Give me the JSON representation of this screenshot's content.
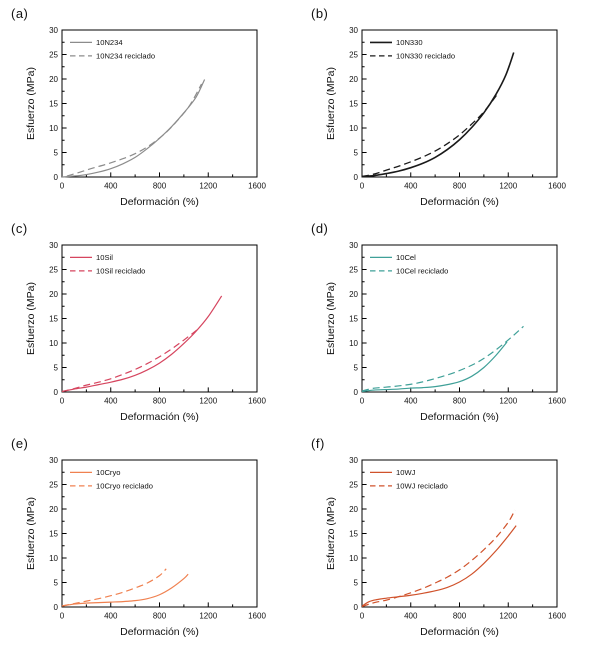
{
  "figure": {
    "xlabel": "Deformación (%)",
    "ylabel": "Esfuerzo (MPa)",
    "background": "#ffffff",
    "axis_color": "#000000"
  },
  "chart_data": [
    {
      "type": "line",
      "panel_label": "(a)",
      "xlabel": "Deformación (%)",
      "ylabel": "Esfuerzo (MPa)",
      "xlim": [
        0,
        1600
      ],
      "ylim": [
        0,
        30
      ],
      "xticks": [
        0,
        400,
        800,
        1200,
        1600
      ],
      "yticks": [
        0,
        5,
        10,
        15,
        20,
        25,
        30
      ],
      "x_minor_step": 200,
      "y_minor_step": 2.5,
      "grid": false,
      "legend_position": "top-left",
      "series": [
        {
          "name": "10N234",
          "style": "solid",
          "color": "#8c8c8c",
          "width": 1.2,
          "points": [
            [
              0,
              0
            ],
            [
              100,
              0.2
            ],
            [
              200,
              0.5
            ],
            [
              300,
              1.0
            ],
            [
              400,
              1.7
            ],
            [
              500,
              2.7
            ],
            [
              600,
              4.0
            ],
            [
              700,
              5.8
            ],
            [
              800,
              7.9
            ],
            [
              900,
              10.3
            ],
            [
              1000,
              13.1
            ],
            [
              1100,
              16.3
            ],
            [
              1170,
              19.9
            ]
          ]
        },
        {
          "name": "10N234 reciclado",
          "style": "dashed",
          "color": "#8c8c8c",
          "width": 1.2,
          "points": [
            [
              40,
              0.2
            ],
            [
              150,
              1.0
            ],
            [
              250,
              1.8
            ],
            [
              350,
              2.5
            ],
            [
              450,
              3.3
            ],
            [
              550,
              4.2
            ],
            [
              650,
              5.4
            ],
            [
              750,
              7.0
            ],
            [
              850,
              9.0
            ],
            [
              950,
              11.6
            ],
            [
              1050,
              14.7
            ],
            [
              1145,
              19.0
            ]
          ]
        }
      ]
    },
    {
      "type": "line",
      "panel_label": "(b)",
      "xlabel": "Deformación (%)",
      "ylabel": "Esfuerzo (MPa)",
      "xlim": [
        0,
        1600
      ],
      "ylim": [
        0,
        30
      ],
      "xticks": [
        0,
        400,
        800,
        1200,
        1600
      ],
      "yticks": [
        0,
        5,
        10,
        15,
        20,
        25,
        30
      ],
      "x_minor_step": 200,
      "y_minor_step": 2.5,
      "grid": false,
      "legend_position": "top-left",
      "series": [
        {
          "name": "10N330",
          "style": "solid",
          "color": "#1a1a1a",
          "width": 1.6,
          "points": [
            [
              0,
              0.1
            ],
            [
              100,
              0.3
            ],
            [
              200,
              0.7
            ],
            [
              300,
              1.2
            ],
            [
              400,
              1.9
            ],
            [
              500,
              2.8
            ],
            [
              600,
              4.0
            ],
            [
              700,
              5.6
            ],
            [
              800,
              7.6
            ],
            [
              900,
              10.1
            ],
            [
              1000,
              13.1
            ],
            [
              1100,
              16.9
            ],
            [
              1180,
              20.8
            ],
            [
              1245,
              25.4
            ]
          ]
        },
        {
          "name": "10N330 reciclado",
          "style": "dashed",
          "color": "#1a1a1a",
          "width": 1.3,
          "points": [
            [
              0,
              0.1
            ],
            [
              100,
              0.6
            ],
            [
              200,
              1.4
            ],
            [
              300,
              2.2
            ],
            [
              400,
              3.1
            ],
            [
              500,
              4.1
            ],
            [
              600,
              5.3
            ],
            [
              700,
              6.8
            ],
            [
              800,
              8.6
            ],
            [
              900,
              10.8
            ],
            [
              1000,
              13.3
            ],
            [
              1105,
              16.7
            ]
          ]
        }
      ]
    },
    {
      "type": "line",
      "panel_label": "(c)",
      "xlabel": "Deformación (%)",
      "ylabel": "Esfuerzo (MPa)",
      "xlim": [
        0,
        1600
      ],
      "ylim": [
        0,
        30
      ],
      "xticks": [
        0,
        400,
        800,
        1200,
        1600
      ],
      "yticks": [
        0,
        5,
        10,
        15,
        20,
        25,
        30
      ],
      "x_minor_step": 200,
      "y_minor_step": 2.5,
      "grid": false,
      "legend_position": "top-left",
      "series": [
        {
          "name": "10Sil",
          "style": "solid",
          "color": "#d6455f",
          "width": 1.2,
          "points": [
            [
              0,
              0.1
            ],
            [
              100,
              0.6
            ],
            [
              200,
              1.0
            ],
            [
              300,
              1.5
            ],
            [
              400,
              2.0
            ],
            [
              500,
              2.6
            ],
            [
              600,
              3.4
            ],
            [
              700,
              4.5
            ],
            [
              800,
              5.9
            ],
            [
              900,
              7.7
            ],
            [
              1000,
              9.9
            ],
            [
              1100,
              12.4
            ],
            [
              1200,
              15.4
            ],
            [
              1310,
              19.6
            ]
          ]
        },
        {
          "name": "10Sil reciclado",
          "style": "dashed",
          "color": "#d6455f",
          "width": 1.2,
          "points": [
            [
              0,
              0.1
            ],
            [
              100,
              0.7
            ],
            [
              200,
              1.4
            ],
            [
              300,
              2.0
            ],
            [
              400,
              2.7
            ],
            [
              500,
              3.6
            ],
            [
              600,
              4.6
            ],
            [
              700,
              5.8
            ],
            [
              800,
              7.2
            ],
            [
              900,
              8.8
            ],
            [
              1000,
              10.6
            ],
            [
              1115,
              12.8
            ]
          ]
        }
      ]
    },
    {
      "type": "line",
      "panel_label": "(d)",
      "xlabel": "Deformación (%)",
      "ylabel": "Esfuerzo (MPa)",
      "xlim": [
        0,
        1600
      ],
      "ylim": [
        0,
        30
      ],
      "xticks": [
        0,
        400,
        800,
        1200,
        1600
      ],
      "yticks": [
        0,
        5,
        10,
        15,
        20,
        25,
        30
      ],
      "x_minor_step": 200,
      "y_minor_step": 2.5,
      "grid": false,
      "legend_position": "top-left",
      "series": [
        {
          "name": "10Cel",
          "style": "solid",
          "color": "#3fa098",
          "width": 1.2,
          "points": [
            [
              0,
              0.1
            ],
            [
              100,
              0.4
            ],
            [
              200,
              0.5
            ],
            [
              300,
              0.6
            ],
            [
              400,
              0.8
            ],
            [
              500,
              0.9
            ],
            [
              600,
              1.1
            ],
            [
              700,
              1.5
            ],
            [
              800,
              2.1
            ],
            [
              900,
              3.2
            ],
            [
              1000,
              5.0
            ],
            [
              1100,
              7.5
            ],
            [
              1190,
              10.2
            ]
          ]
        },
        {
          "name": "10Cel reciclado",
          "style": "dashed",
          "color": "#3fa098",
          "width": 1.2,
          "points": [
            [
              0,
              0.2
            ],
            [
              80,
              0.7
            ],
            [
              150,
              0.9
            ],
            [
              250,
              1.1
            ],
            [
              350,
              1.4
            ],
            [
              450,
              1.8
            ],
            [
              550,
              2.4
            ],
            [
              650,
              3.1
            ],
            [
              750,
              3.9
            ],
            [
              850,
              4.9
            ],
            [
              950,
              6.1
            ],
            [
              1050,
              7.7
            ],
            [
              1150,
              9.6
            ],
            [
              1250,
              11.7
            ],
            [
              1325,
              13.4
            ]
          ]
        }
      ]
    },
    {
      "type": "line",
      "panel_label": "(e)",
      "xlabel": "Deformación (%)",
      "ylabel": "Esfuerzo (MPa)",
      "xlim": [
        0,
        1600
      ],
      "ylim": [
        0,
        30
      ],
      "xticks": [
        0,
        400,
        800,
        1200,
        1600
      ],
      "yticks": [
        0,
        5,
        10,
        15,
        20,
        25,
        30
      ],
      "x_minor_step": 200,
      "y_minor_step": 2.5,
      "grid": false,
      "legend_position": "top-left",
      "series": [
        {
          "name": "10Cryo",
          "style": "solid",
          "color": "#f08150",
          "width": 1.2,
          "points": [
            [
              0,
              0.2
            ],
            [
              100,
              0.6
            ],
            [
              200,
              0.8
            ],
            [
              300,
              0.9
            ],
            [
              400,
              1.0
            ],
            [
              500,
              1.1
            ],
            [
              600,
              1.3
            ],
            [
              700,
              1.7
            ],
            [
              800,
              2.5
            ],
            [
              900,
              3.9
            ],
            [
              1000,
              5.8
            ],
            [
              1035,
              6.7
            ]
          ]
        },
        {
          "name": "10Cryo reciclado",
          "style": "dashed",
          "color": "#f08150",
          "width": 1.2,
          "points": [
            [
              0,
              0.2
            ],
            [
              100,
              0.7
            ],
            [
              200,
              1.2
            ],
            [
              300,
              1.7
            ],
            [
              400,
              2.3
            ],
            [
              500,
              3.0
            ],
            [
              600,
              3.9
            ],
            [
              700,
              4.9
            ],
            [
              800,
              6.4
            ],
            [
              855,
              7.8
            ]
          ]
        }
      ]
    },
    {
      "type": "line",
      "panel_label": "(f)",
      "xlabel": "Deformación (%)",
      "ylabel": "Esfuerzo (MPa)",
      "xlim": [
        0,
        1600
      ],
      "ylim": [
        0,
        30
      ],
      "xticks": [
        0,
        400,
        800,
        1200,
        1600
      ],
      "yticks": [
        0,
        5,
        10,
        15,
        20,
        25,
        30
      ],
      "x_minor_step": 200,
      "y_minor_step": 2.5,
      "grid": false,
      "legend_position": "top-left",
      "series": [
        {
          "name": "10WJ",
          "style": "solid",
          "color": "#d0522b",
          "width": 1.2,
          "points": [
            [
              0,
              0.2
            ],
            [
              60,
              1.1
            ],
            [
              120,
              1.5
            ],
            [
              200,
              1.8
            ],
            [
              300,
              2.1
            ],
            [
              400,
              2.4
            ],
            [
              500,
              2.8
            ],
            [
              600,
              3.3
            ],
            [
              700,
              4.0
            ],
            [
              800,
              5.1
            ],
            [
              900,
              6.7
            ],
            [
              1000,
              8.9
            ],
            [
              1100,
              11.5
            ],
            [
              1200,
              14.5
            ],
            [
              1265,
              16.6
            ]
          ]
        },
        {
          "name": "10WJ reciclado",
          "style": "dashed",
          "color": "#d0522b",
          "width": 1.2,
          "points": [
            [
              0,
              0.1
            ],
            [
              60,
              0.6
            ],
            [
              120,
              1.0
            ],
            [
              200,
              1.4
            ],
            [
              300,
              2.1
            ],
            [
              400,
              2.9
            ],
            [
              500,
              3.8
            ],
            [
              600,
              4.9
            ],
            [
              700,
              6.1
            ],
            [
              800,
              7.6
            ],
            [
              900,
              9.5
            ],
            [
              1000,
              11.7
            ],
            [
              1100,
              14.2
            ],
            [
              1200,
              17.3
            ],
            [
              1255,
              19.8
            ]
          ]
        }
      ]
    }
  ]
}
